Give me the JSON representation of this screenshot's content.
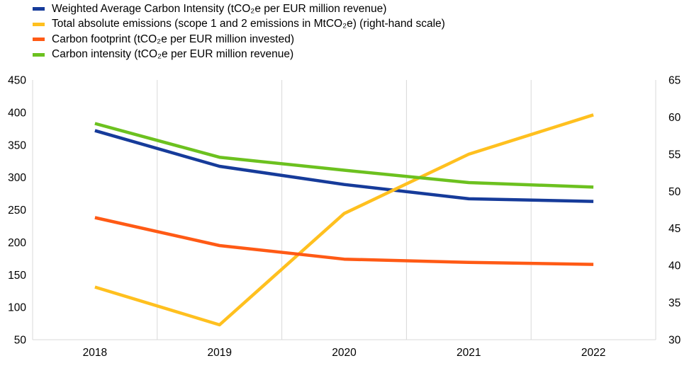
{
  "chart_data": {
    "type": "line",
    "title": "",
    "x": [
      "2018",
      "2019",
      "2020",
      "2021",
      "2022"
    ],
    "y_left": {
      "min": 50,
      "max": 450,
      "ticks": [
        50,
        100,
        150,
        200,
        250,
        300,
        350,
        400,
        450
      ],
      "label": ""
    },
    "y_right": {
      "min": 30,
      "max": 65,
      "ticks": [
        30,
        35,
        40,
        45,
        50,
        55,
        60,
        65
      ],
      "label": ""
    },
    "grid": "vertical",
    "legend_position": "top-left",
    "series": [
      {
        "name": "Weighted Average Carbon Intensity (tCO₂e per EUR million revenue)",
        "axis": "left",
        "color": "#163B9A",
        "values": [
          372,
          317,
          289,
          267,
          263
        ]
      },
      {
        "name": "Total absolute emissions (scope 1 and 2 emissions in MtCO₂e) (right-hand scale)",
        "axis": "right",
        "color": "#FFC01F",
        "values": [
          37.1,
          32.0,
          47.0,
          55.0,
          60.3
        ]
      },
      {
        "name": "Carbon footprint (tCO₂e per EUR million invested)",
        "axis": "left",
        "color": "#FF5A15",
        "values": [
          238,
          195,
          174,
          169,
          166
        ]
      },
      {
        "name": "Carbon intensity (tCO₂e per EUR million revenue)",
        "axis": "left",
        "color": "#6CC11F",
        "values": [
          383,
          331,
          311,
          292,
          285
        ]
      }
    ]
  }
}
